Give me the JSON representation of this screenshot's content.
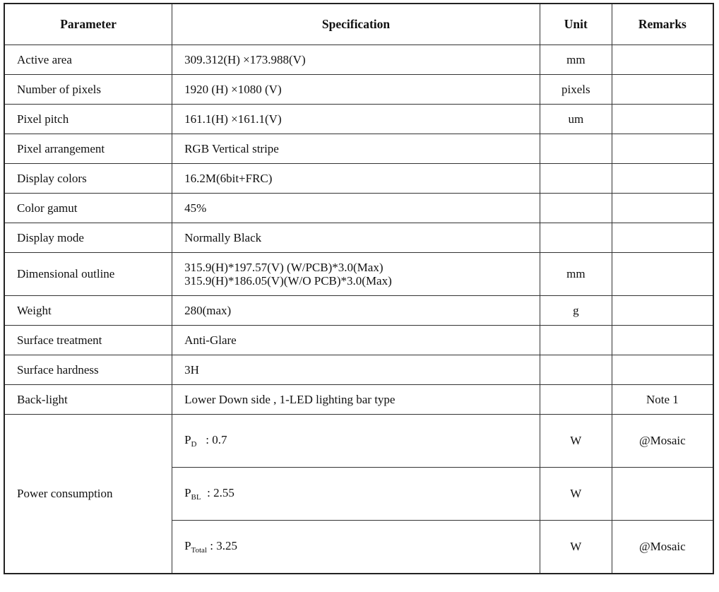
{
  "headers": [
    "Parameter",
    "Specification",
    "Unit",
    "Remarks"
  ],
  "rows": [
    {
      "parameter": "Active area",
      "spec": "309.312(H) ×173.988(V)",
      "unit": "mm",
      "remarks": ""
    },
    {
      "parameter": "Number of pixels",
      "spec": "1920 (H) ×1080 (V)",
      "unit": "pixels",
      "remarks": ""
    },
    {
      "parameter": "Pixel pitch",
      "spec": "161.1(H) ×161.1(V)",
      "unit": "um",
      "remarks": ""
    },
    {
      "parameter": "Pixel arrangement",
      "spec": "RGB Vertical stripe",
      "unit": "",
      "remarks": ""
    },
    {
      "parameter": "Display colors",
      "spec": "16.2M(6bit+FRC)",
      "unit": "",
      "remarks": ""
    },
    {
      "parameter": "Color gamut",
      "spec": "45%",
      "unit": "",
      "remarks": ""
    },
    {
      "parameter": "Display mode",
      "spec": "Normally Black",
      "unit": "",
      "remarks": ""
    },
    {
      "parameter": "Dimensional outline",
      "spec": "315.9(H)*197.57(V) (W/PCB)*3.0(Max)",
      "spec2": "315.9(H)*186.05(V)(W/O PCB)*3.0(Max)",
      "unit": "mm",
      "remarks": ""
    },
    {
      "parameter": "Weight",
      "spec": "280(max)",
      "unit": "g",
      "remarks": ""
    },
    {
      "parameter": "Surface treatment",
      "spec": "Anti-Glare",
      "unit": "",
      "remarks": ""
    },
    {
      "parameter": "Surface hardness",
      "spec": "3H",
      "unit": "",
      "remarks": ""
    },
    {
      "parameter": "Back-light",
      "spec": "Lower Down side , 1-LED lighting bar type",
      "unit": "",
      "remarks": "Note 1"
    }
  ],
  "power": {
    "parameter": "Power consumption",
    "items": [
      {
        "symbol": "P",
        "sub": "D",
        "value": "   : 0.7",
        "unit": "W",
        "remarks": "@Mosaic"
      },
      {
        "symbol": "P",
        "sub": "BL",
        "value": "  : 2.55",
        "unit": "W",
        "remarks": ""
      },
      {
        "symbol": "P",
        "sub": "Total",
        "value": " : 3.25",
        "unit": "W",
        "remarks": "@Mosaic"
      }
    ]
  }
}
